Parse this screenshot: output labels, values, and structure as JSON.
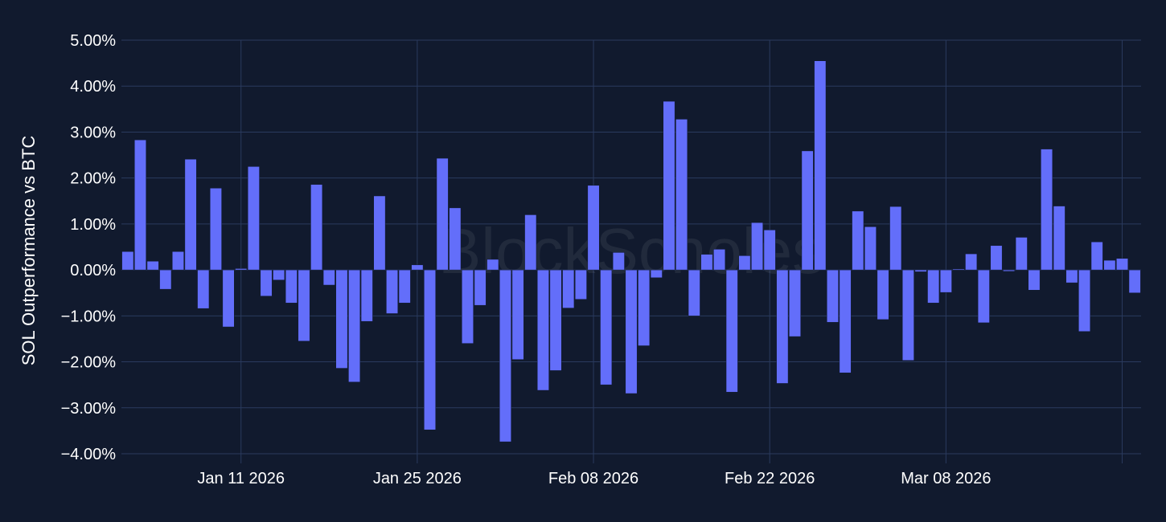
{
  "chart_data": {
    "type": "bar",
    "ylabel": "SOL Outperformance vs BTC",
    "xlabel": "",
    "ylim": [
      -0.04,
      0.05
    ],
    "y_ticks": [
      0.05,
      0.04,
      0.03,
      0.02,
      0.01,
      0.0,
      -0.01,
      -0.02,
      -0.03,
      -0.04
    ],
    "y_tick_labels": [
      "5.00%",
      "4.00%",
      "3.00%",
      "2.00%",
      "1.00%",
      "0.00%",
      "−1.00%",
      "−2.00%",
      "−3.00%",
      "−4.00%"
    ],
    "x_ticks": [
      "2026-01-11",
      "2026-01-25",
      "2026-02-08",
      "2026-02-22",
      "2026-03-08",
      "2026-03-22"
    ],
    "x_tick_labels": [
      "Jan 11 2026",
      "Jan 25 2026",
      "Feb 08 2026",
      "Feb 22 2026",
      "Mar 08 2026",
      ""
    ],
    "x_range": [
      "2026-01-01T12:00",
      "2026-03-23T12:00"
    ],
    "grid": true,
    "bar_color": "#636efa",
    "background": "#111a2e",
    "grid_color": "#2a3a5e",
    "watermark": "BlockScholes",
    "x": [
      "2026-01-02",
      "2026-01-03",
      "2026-01-04",
      "2026-01-05",
      "2026-01-06",
      "2026-01-07",
      "2026-01-08",
      "2026-01-09",
      "2026-01-10",
      "2026-01-11",
      "2026-01-12",
      "2026-01-13",
      "2026-01-14",
      "2026-01-15",
      "2026-01-16",
      "2026-01-17",
      "2026-01-18",
      "2026-01-19",
      "2026-01-20",
      "2026-01-21",
      "2026-01-22",
      "2026-01-23",
      "2026-01-24",
      "2026-01-25",
      "2026-01-26",
      "2026-01-27",
      "2026-01-28",
      "2026-01-29",
      "2026-01-30",
      "2026-01-31",
      "2026-02-01",
      "2026-02-02",
      "2026-02-03",
      "2026-02-04",
      "2026-02-05",
      "2026-02-06",
      "2026-02-07",
      "2026-02-08",
      "2026-02-09",
      "2026-02-10",
      "2026-02-11",
      "2026-02-12",
      "2026-02-13",
      "2026-02-14",
      "2026-02-15",
      "2026-02-16",
      "2026-02-17",
      "2026-02-18",
      "2026-02-19",
      "2026-02-20",
      "2026-02-21",
      "2026-02-22",
      "2026-02-23",
      "2026-02-24",
      "2026-02-25",
      "2026-02-26",
      "2026-02-27",
      "2026-02-28",
      "2026-03-01",
      "2026-03-02",
      "2026-03-03",
      "2026-03-04",
      "2026-03-05",
      "2026-03-06",
      "2026-03-07",
      "2026-03-08",
      "2026-03-09",
      "2026-03-10",
      "2026-03-11",
      "2026-03-12",
      "2026-03-13",
      "2026-03-14",
      "2026-03-15",
      "2026-03-16",
      "2026-03-17",
      "2026-03-18",
      "2026-03-19",
      "2026-03-20",
      "2026-03-21",
      "2026-03-22",
      "2026-03-23"
    ],
    "values": [
      0.004,
      0.0283,
      0.0019,
      -0.0042,
      0.004,
      0.0241,
      -0.0084,
      0.0178,
      -0.0124,
      0.0003,
      0.0225,
      -0.0057,
      -0.0022,
      -0.0072,
      -0.0155,
      0.0186,
      -0.0033,
      -0.0214,
      -0.0244,
      -0.0112,
      0.0161,
      -0.0095,
      -0.0072,
      0.0011,
      -0.0348,
      0.0243,
      0.0135,
      -0.016,
      -0.0077,
      0.0023,
      -0.0374,
      -0.0195,
      0.012,
      -0.0262,
      -0.0219,
      -0.0083,
      -0.0064,
      0.0184,
      -0.025,
      0.0038,
      -0.0269,
      -0.0165,
      -0.0017,
      0.0367,
      0.0328,
      -0.01,
      0.0034,
      0.0045,
      -0.0266,
      0.0031,
      0.0103,
      0.0087,
      -0.0247,
      -0.0145,
      0.0259,
      0.0455,
      -0.0114,
      -0.0224,
      0.0128,
      0.0094,
      -0.0108,
      0.0138,
      -0.0197,
      -0.0004,
      -0.0072,
      -0.0049,
      0.0002,
      0.0035,
      -0.0115,
      0.0053,
      -0.0003,
      0.0071,
      -0.0044,
      0.0263,
      0.0139,
      -0.0028,
      -0.0134,
      0.0061,
      0.0021,
      0.0025,
      -0.005
    ]
  }
}
